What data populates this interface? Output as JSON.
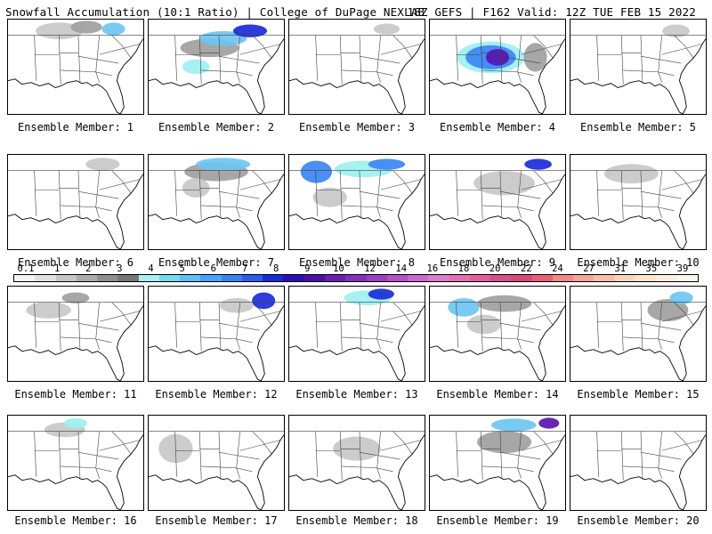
{
  "header": {
    "left": "Snowfall Accumulation (10:1 Ratio) | College of DuPage NEXLAB",
    "right": "18Z GEFS | F162 Valid: 12Z TUE FEB 15 2022"
  },
  "colorbar": {
    "ticks": [
      "0.1",
      "1",
      "2",
      "3",
      "4",
      "5",
      "6",
      "7",
      "8",
      "9",
      "10",
      "12",
      "14",
      "16",
      "18",
      "20",
      "22",
      "24",
      "27",
      "31",
      "35",
      "39"
    ],
    "colors": [
      "#f4f4f4",
      "#e0e0e0",
      "#c6c6c6",
      "#acacac",
      "#8e8e8e",
      "#767676",
      "#a6f0f0",
      "#78d8ec",
      "#5ec0f4",
      "#4aa2f8",
      "#3a82f4",
      "#2a5cf0",
      "#1a2cd8",
      "#2a10b4",
      "#4a10a8",
      "#6a20b0",
      "#8430b8",
      "#9c40c0",
      "#b450c8",
      "#c86ad0",
      "#d880c8",
      "#e070b0",
      "#e0609c",
      "#d8508a",
      "#d84878",
      "#e46078",
      "#f08a8a",
      "#f2a898",
      "#f6c0a8",
      "#f8d6be",
      "#fae4d2",
      "#fcefe2",
      "#fdf6ee"
    ]
  },
  "panels": [
    {
      "label": "Ensemble Member: 1",
      "snow": [
        [
          0.38,
          0.12,
          0.3,
          0.12,
          1
        ],
        [
          0.58,
          0.08,
          0.18,
          0.08,
          2
        ],
        [
          0.78,
          0.1,
          0.12,
          0.08,
          4
        ]
      ]
    },
    {
      "label": "Ensemble Member: 2",
      "snow": [
        [
          0.45,
          0.3,
          0.38,
          0.14,
          2
        ],
        [
          0.55,
          0.2,
          0.3,
          0.1,
          4
        ],
        [
          0.75,
          0.12,
          0.2,
          0.08,
          6
        ],
        [
          0.35,
          0.5,
          0.15,
          0.1,
          3
        ]
      ]
    },
    {
      "label": "Ensemble Member: 3",
      "snow": [
        [
          0.72,
          0.1,
          0.14,
          0.06,
          1
        ]
      ]
    },
    {
      "label": "Ensemble Member: 4",
      "snow": [
        [
          0.45,
          0.4,
          0.45,
          0.28,
          3
        ],
        [
          0.45,
          0.4,
          0.32,
          0.2,
          5
        ],
        [
          0.5,
          0.4,
          0.12,
          0.12,
          7
        ],
        [
          0.78,
          0.4,
          0.12,
          0.25,
          2
        ]
      ]
    },
    {
      "label": "Ensemble Member: 5",
      "snow": [
        [
          0.78,
          0.12,
          0.15,
          0.08,
          1
        ]
      ]
    },
    {
      "label": "Ensemble Member: 6",
      "snow": [
        [
          0.7,
          0.1,
          0.2,
          0.08,
          1
        ]
      ]
    },
    {
      "label": "Ensemble Member: 7",
      "snow": [
        [
          0.5,
          0.18,
          0.42,
          0.14,
          2
        ],
        [
          0.55,
          0.1,
          0.35,
          0.08,
          4
        ],
        [
          0.35,
          0.35,
          0.15,
          0.15,
          1
        ]
      ]
    },
    {
      "label": "Ensemble Member: 8",
      "snow": [
        [
          0.2,
          0.18,
          0.18,
          0.18,
          5
        ],
        [
          0.55,
          0.15,
          0.38,
          0.12,
          3
        ],
        [
          0.72,
          0.1,
          0.22,
          0.06,
          5
        ],
        [
          0.3,
          0.45,
          0.2,
          0.15,
          1
        ]
      ]
    },
    {
      "label": "Ensemble Member: 9",
      "snow": [
        [
          0.55,
          0.3,
          0.4,
          0.2,
          1
        ],
        [
          0.8,
          0.1,
          0.15,
          0.06,
          6
        ]
      ]
    },
    {
      "label": "Ensemble Member: 10",
      "snow": [
        [
          0.45,
          0.2,
          0.35,
          0.15,
          1
        ]
      ]
    },
    {
      "label": "Ensemble Member: 11",
      "snow": [
        [
          0.3,
          0.25,
          0.28,
          0.12,
          1
        ],
        [
          0.5,
          0.12,
          0.15,
          0.06,
          2
        ]
      ]
    },
    {
      "label": "Ensemble Member: 12",
      "snow": [
        [
          0.85,
          0.15,
          0.12,
          0.12,
          6
        ],
        [
          0.65,
          0.2,
          0.2,
          0.1,
          1
        ]
      ]
    },
    {
      "label": "Ensemble Member: 13",
      "snow": [
        [
          0.58,
          0.12,
          0.3,
          0.1,
          3
        ],
        [
          0.68,
          0.08,
          0.14,
          0.06,
          6
        ]
      ]
    },
    {
      "label": "Ensemble Member: 14",
      "snow": [
        [
          0.25,
          0.22,
          0.18,
          0.14,
          4
        ],
        [
          0.55,
          0.18,
          0.35,
          0.12,
          2
        ],
        [
          0.4,
          0.4,
          0.2,
          0.15,
          1
        ]
      ]
    },
    {
      "label": "Ensemble Member: 15",
      "snow": [
        [
          0.72,
          0.25,
          0.25,
          0.18,
          2
        ],
        [
          0.82,
          0.12,
          0.12,
          0.08,
          4
        ]
      ]
    },
    {
      "label": "Ensemble Member: 16",
      "snow": [
        [
          0.42,
          0.15,
          0.25,
          0.1,
          1
        ],
        [
          0.5,
          0.08,
          0.12,
          0.05,
          3
        ]
      ]
    },
    {
      "label": "Ensemble Member: 17",
      "snow": [
        [
          0.2,
          0.35,
          0.2,
          0.25,
          1
        ]
      ]
    },
    {
      "label": "Ensemble Member: 18",
      "snow": [
        [
          0.5,
          0.35,
          0.3,
          0.2,
          1
        ]
      ]
    },
    {
      "label": "Ensemble Member: 19",
      "snow": [
        [
          0.55,
          0.28,
          0.35,
          0.18,
          2
        ],
        [
          0.62,
          0.1,
          0.28,
          0.08,
          4
        ],
        [
          0.88,
          0.08,
          0.1,
          0.06,
          7
        ]
      ]
    },
    {
      "label": "Ensemble Member: 20",
      "snow": []
    }
  ]
}
